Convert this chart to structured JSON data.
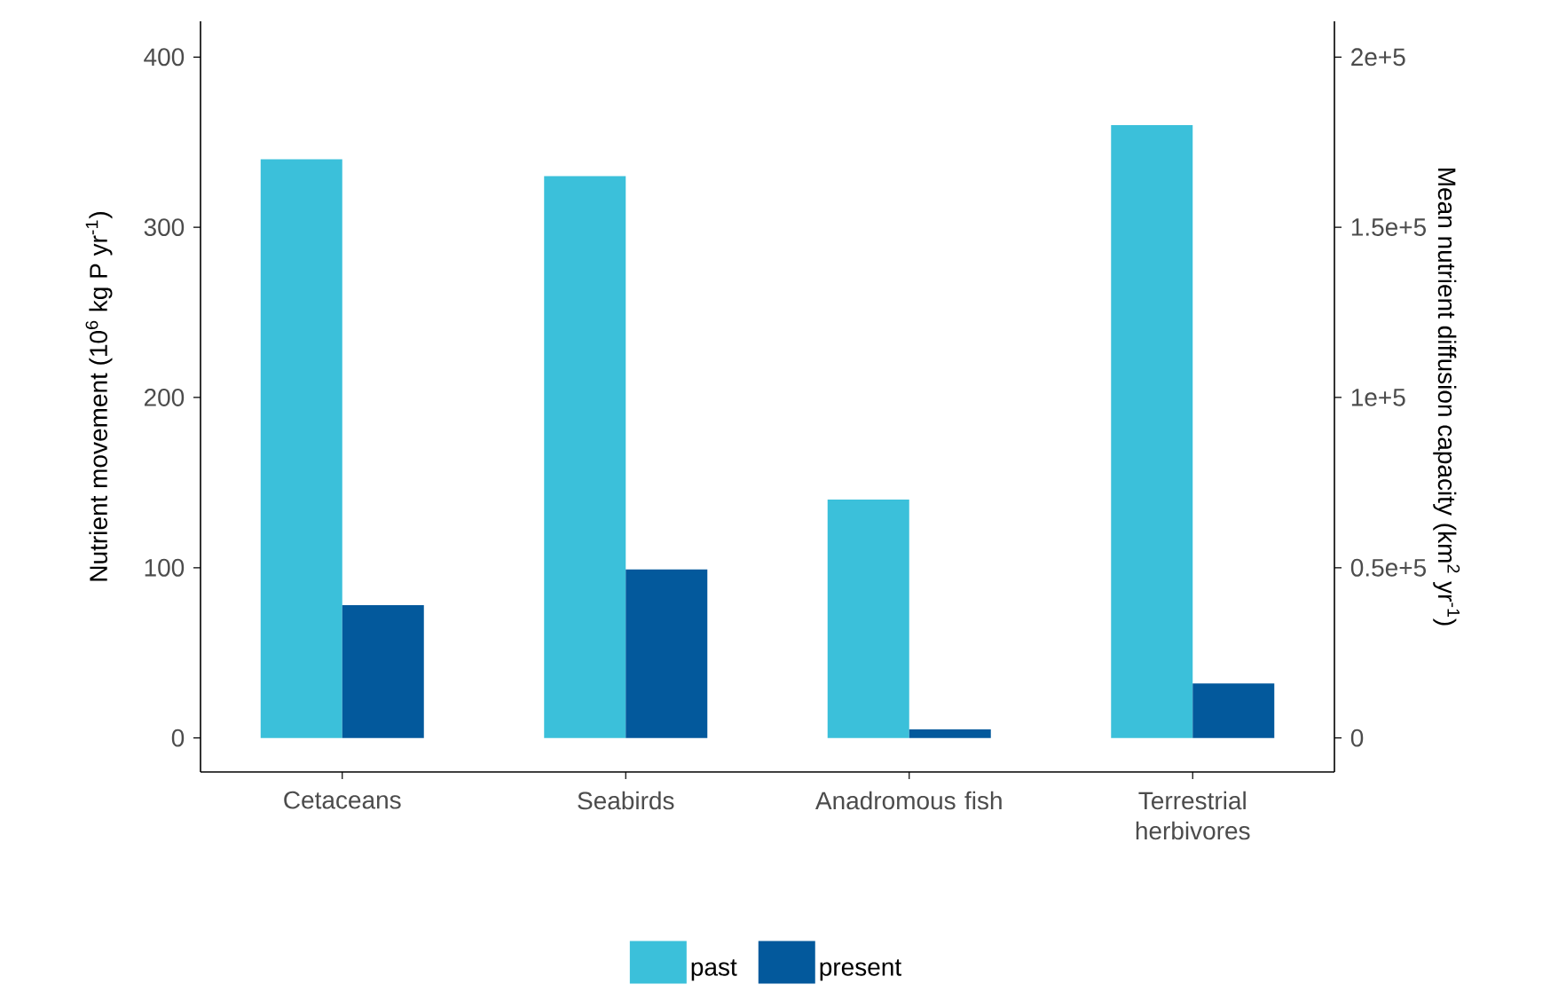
{
  "chart_data": {
    "type": "bar",
    "categories": [
      "Cetaceans",
      "Seabirds",
      "Anadromous fish",
      "Terrestrial herbivores"
    ],
    "series": [
      {
        "name": "past",
        "color": "#3bc0da",
        "values": [
          340,
          330,
          140,
          360
        ]
      },
      {
        "name": "present",
        "color": "#03599c",
        "values": [
          78,
          99,
          5,
          32
        ]
      }
    ],
    "ylabel": "Nutrient movement (10$^{6}$ kg P yr$^{-1}$)",
    "y2label": "Mean nutrient diffusion capacity (km$^{2}$ yr$^{-1}$)",
    "ylim": [
      -20,
      421
    ],
    "yticks": [
      0,
      100,
      200,
      300,
      400
    ],
    "y2lim": [
      -10000,
      210500
    ],
    "y2ticks": [
      0,
      {
        "value": 50000,
        "label": "0.5e+5"
      },
      {
        "value": 100000,
        "label": "1e+5"
      },
      {
        "value": 150000,
        "label": "1.5e+5"
      },
      {
        "value": 200000,
        "label": "2e+5"
      }
    ],
    "grid": false,
    "legend": "bottom"
  }
}
